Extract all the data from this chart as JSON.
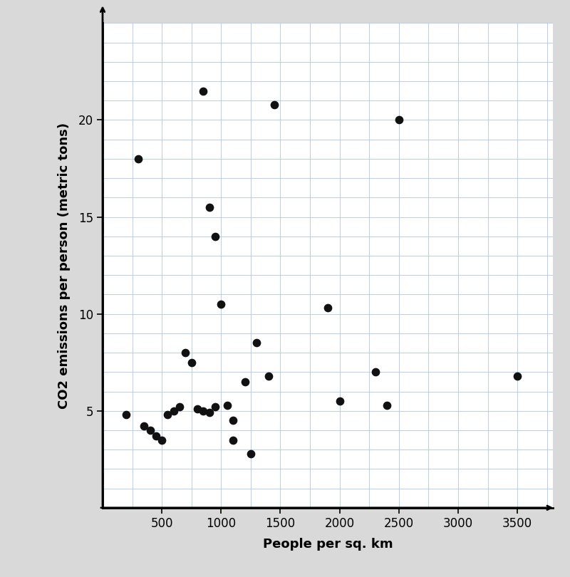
{
  "points": [
    [
      200,
      4.8
    ],
    [
      300,
      18.0
    ],
    [
      350,
      4.2
    ],
    [
      400,
      4.0
    ],
    [
      450,
      3.7
    ],
    [
      500,
      3.5
    ],
    [
      550,
      4.8
    ],
    [
      600,
      5.0
    ],
    [
      650,
      5.2
    ],
    [
      700,
      8.0
    ],
    [
      750,
      7.5
    ],
    [
      800,
      5.1
    ],
    [
      850,
      5.0
    ],
    [
      900,
      4.9
    ],
    [
      850,
      21.5
    ],
    [
      900,
      15.5
    ],
    [
      950,
      14.0
    ],
    [
      950,
      5.2
    ],
    [
      1000,
      10.5
    ],
    [
      1050,
      5.3
    ],
    [
      1100,
      4.5
    ],
    [
      1100,
      3.5
    ],
    [
      1200,
      6.5
    ],
    [
      1300,
      8.5
    ],
    [
      1250,
      2.8
    ],
    [
      1400,
      6.8
    ],
    [
      1450,
      20.8
    ],
    [
      1900,
      10.3
    ],
    [
      2000,
      5.5
    ],
    [
      2300,
      7.0
    ],
    [
      2400,
      5.3
    ],
    [
      2500,
      20.0
    ],
    [
      3500,
      6.8
    ]
  ],
  "xlabel": "People per sq. km",
  "ylabel": "CO2 emissions per person (metric tons)",
  "xlim": [
    0,
    3800
  ],
  "ylim": [
    0,
    25
  ],
  "xticks": [
    500,
    1000,
    1500,
    2000,
    2500,
    3000,
    3500
  ],
  "yticks": [
    5,
    10,
    15,
    20
  ],
  "dot_color": "#111111",
  "dot_size": 55,
  "grid_color": "#aec6e8",
  "outer_bg": "#d9d9d9",
  "inner_bg": "#ffffff",
  "tick_fontsize": 12,
  "label_fontsize": 13,
  "x_minor_step": 250,
  "y_minor_step": 1
}
